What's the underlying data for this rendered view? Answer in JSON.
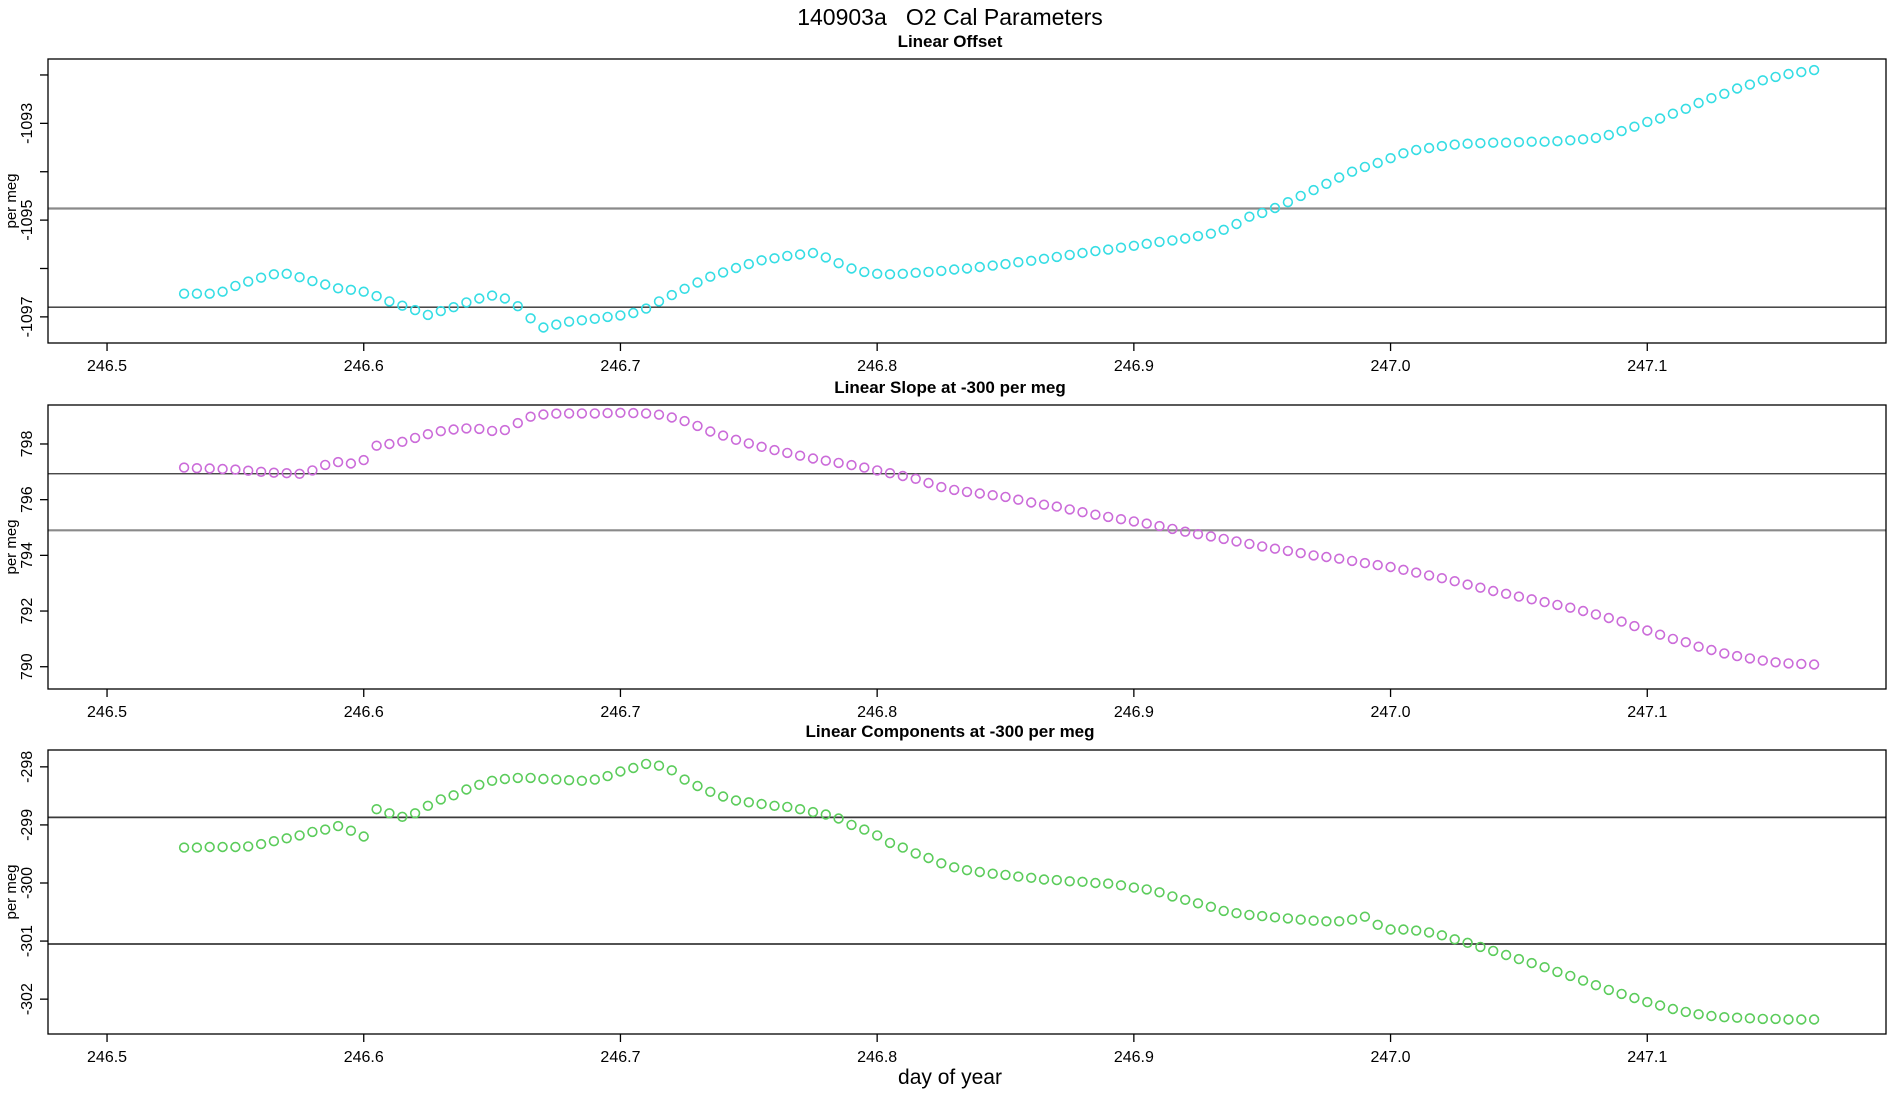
{
  "figure_title": "140903a   O2 Cal Parameters",
  "x_axis_label": "day of year",
  "x_tick_labels": [
    "246.5",
    "246.6",
    "246.7",
    "246.8",
    "246.9",
    "247.0",
    "247.1"
  ],
  "x_tick_values": [
    246.5,
    246.6,
    246.7,
    246.8,
    246.9,
    247.0,
    247.1
  ],
  "x_days": [
    246.53,
    246.535,
    246.54,
    246.545,
    246.55,
    246.555,
    246.56,
    246.565,
    246.57,
    246.575,
    246.58,
    246.585,
    246.59,
    246.595,
    246.6,
    246.605,
    246.61,
    246.615,
    246.62,
    246.625,
    246.63,
    246.635,
    246.64,
    246.645,
    246.65,
    246.655,
    246.66,
    246.665,
    246.67,
    246.675,
    246.68,
    246.685,
    246.69,
    246.695,
    246.7,
    246.705,
    246.71,
    246.715,
    246.72,
    246.725,
    246.73,
    246.735,
    246.74,
    246.745,
    246.75,
    246.755,
    246.76,
    246.765,
    246.77,
    246.775,
    246.78,
    246.785,
    246.79,
    246.795,
    246.8,
    246.805,
    246.81,
    246.815,
    246.82,
    246.825,
    246.83,
    246.835,
    246.84,
    246.845,
    246.85,
    246.855,
    246.86,
    246.865,
    246.87,
    246.875,
    246.88,
    246.885,
    246.89,
    246.895,
    246.9,
    246.905,
    246.91,
    246.915,
    246.92,
    246.925,
    246.93,
    246.935,
    246.94,
    246.945,
    246.95,
    246.955,
    246.96,
    246.965,
    246.97,
    246.975,
    246.98,
    246.985,
    246.99,
    246.995,
    247.0,
    247.005,
    247.01,
    247.015,
    247.02,
    247.025,
    247.03,
    247.035,
    247.04,
    247.045,
    247.05,
    247.055,
    247.06,
    247.065,
    247.07,
    247.075,
    247.08,
    247.085,
    247.09,
    247.095,
    247.1,
    247.105,
    247.11,
    247.115,
    247.12,
    247.125,
    247.13,
    247.135,
    247.14,
    247.145,
    247.15,
    247.155,
    247.16,
    247.165
  ],
  "chart_data": [
    {
      "type": "scatter",
      "title": "Linear Offset",
      "ylabel": "per meg",
      "point_color": "#35dde4",
      "xlim": [
        246.477,
        247.193
      ],
      "ylim": [
        -1097.54,
        -1091.67
      ],
      "y_ticks": [
        {
          "value": -1092,
          "label": ""
        },
        {
          "value": -1093,
          "label": "-1093"
        },
        {
          "value": -1094,
          "label": ""
        },
        {
          "value": -1095,
          "label": "-1095"
        },
        {
          "value": -1096,
          "label": ""
        },
        {
          "value": -1097,
          "label": "-1097"
        }
      ],
      "hlines": [
        {
          "value": -1094.76,
          "color": "#8a8a8a",
          "width": 2.2
        },
        {
          "value": -1096.8,
          "color": "#2f2f2f",
          "width": 1.3
        }
      ],
      "y": [
        -1096.52,
        -1096.52,
        -1096.52,
        -1096.48,
        -1096.36,
        -1096.27,
        -1096.19,
        -1096.12,
        -1096.11,
        -1096.18,
        -1096.26,
        -1096.33,
        -1096.41,
        -1096.44,
        -1096.48,
        -1096.57,
        -1096.68,
        -1096.77,
        -1096.86,
        -1096.96,
        -1096.88,
        -1096.8,
        -1096.7,
        -1096.62,
        -1096.56,
        -1096.62,
        -1096.78,
        -1097.03,
        -1097.22,
        -1097.16,
        -1097.1,
        -1097.07,
        -1097.04,
        -1097.0,
        -1096.97,
        -1096.92,
        -1096.83,
        -1096.68,
        -1096.55,
        -1096.42,
        -1096.29,
        -1096.17,
        -1096.08,
        -1095.99,
        -1095.91,
        -1095.83,
        -1095.79,
        -1095.74,
        -1095.71,
        -1095.68,
        -1095.77,
        -1095.89,
        -1096.0,
        -1096.07,
        -1096.11,
        -1096.12,
        -1096.11,
        -1096.09,
        -1096.07,
        -1096.05,
        -1096.02,
        -1096.0,
        -1095.97,
        -1095.94,
        -1095.91,
        -1095.87,
        -1095.84,
        -1095.8,
        -1095.76,
        -1095.72,
        -1095.68,
        -1095.64,
        -1095.61,
        -1095.57,
        -1095.53,
        -1095.49,
        -1095.45,
        -1095.42,
        -1095.38,
        -1095.33,
        -1095.28,
        -1095.2,
        -1095.08,
        -1094.93,
        -1094.85,
        -1094.75,
        -1094.63,
        -1094.5,
        -1094.38,
        -1094.25,
        -1094.12,
        -1094.0,
        -1093.9,
        -1093.82,
        -1093.72,
        -1093.62,
        -1093.55,
        -1093.51,
        -1093.47,
        -1093.44,
        -1093.42,
        -1093.41,
        -1093.4,
        -1093.4,
        -1093.39,
        -1093.38,
        -1093.38,
        -1093.37,
        -1093.35,
        -1093.33,
        -1093.3,
        -1093.24,
        -1093.16,
        -1093.07,
        -1092.97,
        -1092.9,
        -1092.8,
        -1092.7,
        -1092.58,
        -1092.48,
        -1092.39,
        -1092.28,
        -1092.2,
        -1092.11,
        -1092.04,
        -1091.98,
        -1091.94,
        -1091.9
      ]
    },
    {
      "type": "scatter",
      "title": "Linear Slope at -300 per meg",
      "ylabel": "per meg",
      "point_color": "#cb6bd9",
      "xlim": [
        246.477,
        247.193
      ],
      "ylim": [
        789.2,
        799.4
      ],
      "y_ticks": [
        {
          "value": 798,
          "label": "798"
        },
        {
          "value": 796,
          "label": "796"
        },
        {
          "value": 794,
          "label": "794"
        },
        {
          "value": 792,
          "label": "792"
        },
        {
          "value": 790,
          "label": "790"
        }
      ],
      "hlines": [
        {
          "value": 796.93,
          "color": "#2f2f2f",
          "width": 1.3
        },
        {
          "value": 794.9,
          "color": "#8a8a8a",
          "width": 2.2
        }
      ],
      "y": [
        797.15,
        797.13,
        797.12,
        797.1,
        797.08,
        797.04,
        797.0,
        796.97,
        796.95,
        796.93,
        797.05,
        797.25,
        797.35,
        797.3,
        797.42,
        797.94,
        798.0,
        798.08,
        798.22,
        798.35,
        798.46,
        798.52,
        798.56,
        798.54,
        798.47,
        798.5,
        798.75,
        798.98,
        799.06,
        799.09,
        799.1,
        799.1,
        799.1,
        799.11,
        799.12,
        799.11,
        799.1,
        799.05,
        798.95,
        798.82,
        798.65,
        798.45,
        798.3,
        798.15,
        798.02,
        797.9,
        797.78,
        797.68,
        797.58,
        797.48,
        797.4,
        797.32,
        797.24,
        797.15,
        797.05,
        796.95,
        796.85,
        796.75,
        796.6,
        796.45,
        796.35,
        796.28,
        796.22,
        796.16,
        796.1,
        796.0,
        795.9,
        795.82,
        795.75,
        795.65,
        795.55,
        795.46,
        795.38,
        795.3,
        795.22,
        795.14,
        795.05,
        794.95,
        794.85,
        794.76,
        794.68,
        794.59,
        794.5,
        794.41,
        794.32,
        794.24,
        794.16,
        794.08,
        794.0,
        793.94,
        793.88,
        793.8,
        793.72,
        793.65,
        793.58,
        793.48,
        793.38,
        793.28,
        793.18,
        793.07,
        792.95,
        792.84,
        792.72,
        792.62,
        792.52,
        792.42,
        792.32,
        792.22,
        792.12,
        792.0,
        791.88,
        791.75,
        791.62,
        791.46,
        791.3,
        791.15,
        791.0,
        790.88,
        790.72,
        790.6,
        790.48,
        790.38,
        790.3,
        790.22,
        790.16,
        790.12,
        790.1,
        790.08
      ]
    },
    {
      "type": "scatter",
      "title": "Linear Components at -300 per meg",
      "ylabel": "per meg",
      "point_color": "#5bcc5b",
      "xlim": [
        246.477,
        247.193
      ],
      "ylim": [
        -302.6,
        -297.71
      ],
      "y_ticks": [
        {
          "value": -298,
          "label": "-298"
        },
        {
          "value": -299,
          "label": "-299"
        },
        {
          "value": -300,
          "label": "-300"
        },
        {
          "value": -301,
          "label": "-301"
        },
        {
          "value": -302,
          "label": "-302"
        }
      ],
      "hlines": [
        {
          "value": -298.87,
          "color": "#3a3a3a",
          "width": 1.8
        },
        {
          "value": -301.05,
          "color": "#3a3a3a",
          "width": 1.8
        }
      ],
      "y": [
        -299.39,
        -299.39,
        -299.38,
        -299.38,
        -299.38,
        -299.37,
        -299.33,
        -299.28,
        -299.23,
        -299.18,
        -299.12,
        -299.08,
        -299.02,
        -299.1,
        -299.2,
        -298.73,
        -298.8,
        -298.86,
        -298.8,
        -298.67,
        -298.56,
        -298.49,
        -298.39,
        -298.31,
        -298.24,
        -298.21,
        -298.19,
        -298.19,
        -298.21,
        -298.22,
        -298.23,
        -298.24,
        -298.22,
        -298.16,
        -298.08,
        -298.02,
        -297.95,
        -297.98,
        -298.06,
        -298.22,
        -298.33,
        -298.43,
        -298.51,
        -298.58,
        -298.61,
        -298.64,
        -298.67,
        -298.69,
        -298.73,
        -298.78,
        -298.82,
        -298.89,
        -299.0,
        -299.08,
        -299.18,
        -299.31,
        -299.39,
        -299.49,
        -299.57,
        -299.66,
        -299.73,
        -299.78,
        -299.81,
        -299.84,
        -299.86,
        -299.89,
        -299.91,
        -299.94,
        -299.95,
        -299.97,
        -299.98,
        -300.0,
        -300.01,
        -300.04,
        -300.08,
        -300.11,
        -300.16,
        -300.23,
        -300.29,
        -300.35,
        -300.41,
        -300.48,
        -300.52,
        -300.55,
        -300.57,
        -300.59,
        -300.61,
        -300.63,
        -300.65,
        -300.66,
        -300.66,
        -300.63,
        -300.58,
        -300.72,
        -300.8,
        -300.8,
        -300.82,
        -300.85,
        -300.9,
        -300.97,
        -301.03,
        -301.1,
        -301.17,
        -301.24,
        -301.31,
        -301.38,
        -301.45,
        -301.53,
        -301.6,
        -301.68,
        -301.76,
        -301.84,
        -301.91,
        -301.98,
        -302.05,
        -302.11,
        -302.17,
        -302.22,
        -302.26,
        -302.29,
        -302.31,
        -302.32,
        -302.33,
        -302.34,
        -302.34,
        -302.35,
        -302.35,
        -302.35
      ]
    }
  ]
}
